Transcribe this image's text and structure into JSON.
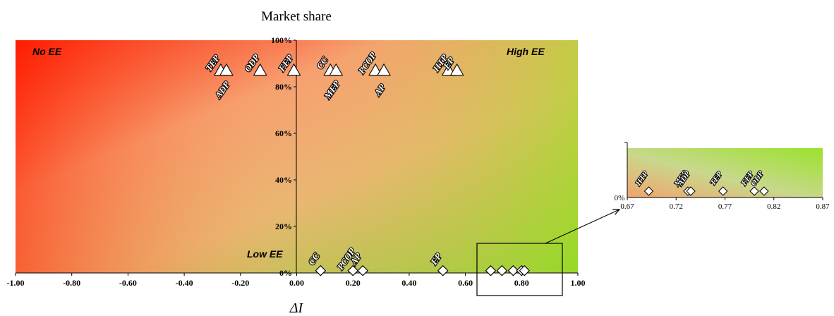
{
  "chart_data": [
    {
      "type": "scatter",
      "title": "Market share",
      "xlabel": "ΔI",
      "ylabel": "",
      "xlim": [
        -1.0,
        1.0
      ],
      "ylim": [
        0,
        100
      ],
      "x_ticks": [
        "-1.00",
        "-0.80",
        "-0.60",
        "-0.40",
        "-0.20",
        "0.00",
        "0.20",
        "0.40",
        "0.60",
        "0.80",
        "1.00"
      ],
      "y_ticks": [
        "0%",
        "20%",
        "40%",
        "60%",
        "80%",
        "100%"
      ],
      "grid": false,
      "background": "gradient red (No EE, top-left) to green (High EE, top-right)",
      "region_labels": {
        "top_left": "No EE",
        "top_right": "High EE",
        "bottom_middle": "Low EE"
      },
      "series": [
        {
          "marker": "triangle",
          "points": [
            {
              "label": "TEP",
              "x": -0.27,
              "y": 87
            },
            {
              "label": "ADP",
              "x": -0.25,
              "y": 87
            },
            {
              "label": "ODP",
              "x": -0.13,
              "y": 87
            },
            {
              "label": "FEP",
              "x": -0.01,
              "y": 87
            },
            {
              "label": "CC",
              "x": 0.12,
              "y": 87
            },
            {
              "label": "MEP",
              "x": 0.14,
              "y": 87
            },
            {
              "label": "PCOP",
              "x": 0.28,
              "y": 87
            },
            {
              "label": "AP",
              "x": 0.31,
              "y": 87
            },
            {
              "label": "HTP",
              "x": 0.54,
              "y": 87
            },
            {
              "label": "EP",
              "x": 0.57,
              "y": 87
            }
          ]
        },
        {
          "marker": "diamond",
          "points": [
            {
              "label": "CC",
              "x": 0.085,
              "y": 1
            },
            {
              "label": "PCOP",
              "x": 0.2,
              "y": 1
            },
            {
              "label": "AP",
              "x": 0.235,
              "y": 1
            },
            {
              "label": "EP",
              "x": 0.52,
              "y": 1
            },
            {
              "label": "",
              "x": 0.69,
              "y": 1
            },
            {
              "label": "",
              "x": 0.73,
              "y": 1
            },
            {
              "label": "",
              "x": 0.77,
              "y": 1
            },
            {
              "label": "",
              "x": 0.8,
              "y": 1
            },
            {
              "label": "",
              "x": 0.81,
              "y": 1
            }
          ]
        }
      ]
    },
    {
      "type": "scatter",
      "title": "",
      "xlim": [
        0.67,
        0.87
      ],
      "x_ticks": [
        "0.67",
        "0.72",
        "0.77",
        "0.82",
        "0.87"
      ],
      "y_ticks": [
        "0%"
      ],
      "series": [
        {
          "marker": "diamond",
          "points": [
            {
              "label": "HTP",
              "x": 0.692,
              "y": 0
            },
            {
              "label": "MEP",
              "x": 0.732,
              "y": 0
            },
            {
              "label": "ADP",
              "x": 0.735,
              "y": 0
            },
            {
              "label": "TEP",
              "x": 0.768,
              "y": 0
            },
            {
              "label": "FEP",
              "x": 0.8,
              "y": 0
            },
            {
              "label": "ODP",
              "x": 0.81,
              "y": 0
            }
          ]
        }
      ]
    }
  ]
}
